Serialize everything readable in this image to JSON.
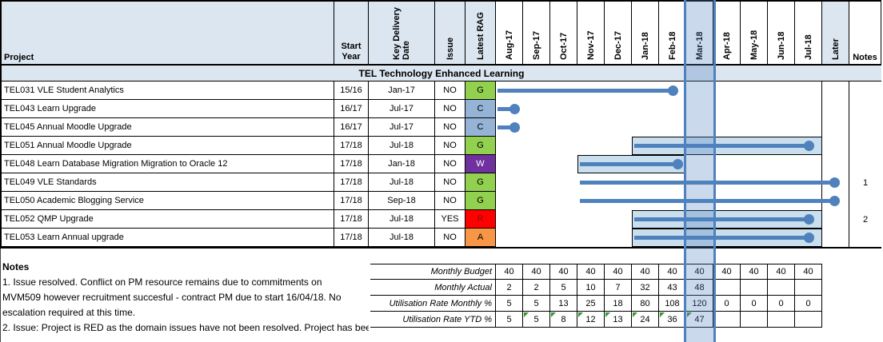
{
  "colors": {
    "header_fill": "#dce6f1",
    "grid_line": "#000000",
    "gantt_line": "#4f81bd",
    "gantt_band_fill": "#c9dfee",
    "highlight_fill": "rgba(79,129,189,0.30)",
    "highlight_border": "#4f81bd",
    "flag_green": "#339933",
    "rag_fill": {
      "G": "#92d050",
      "C": "#95b3d7",
      "W": "#7030a0",
      "R": "#ff0000",
      "A": "#f79646"
    },
    "rag_text": {
      "G": "#000000",
      "C": "#000000",
      "W": "#ffffff",
      "R": "#9c0006",
      "A": "#000000"
    }
  },
  "table": {
    "headers": {
      "project": "Project",
      "start_year": "Start Year",
      "key_delivery": "Key Delivery Date",
      "issue": "Issue",
      "latest_rag": "Latest RAG",
      "later": "Later",
      "notes": "Notes"
    },
    "months": [
      "Aug-17",
      "Sep-17",
      "Oct-17",
      "Nov-17",
      "Dec-17",
      "Jan-18",
      "Feb-18",
      "Mar-18",
      "Apr-18",
      "May-18",
      "Jun-18",
      "Jul-18"
    ],
    "highlight_month": "Mar-18",
    "section_header": "TEL Technology Enhanced Learning",
    "projects": [
      {
        "name": "TEL031 VLE Student Analytics",
        "start_year": "15/16",
        "key_date": "Jan-17",
        "issue": "NO",
        "rag": "G",
        "note": "",
        "line": [
          0.05,
          6.5
        ],
        "band": null
      },
      {
        "name": "TEL043 Learn Upgrade",
        "start_year": "16/17",
        "key_date": "Jul-17",
        "issue": "NO",
        "rag": "C",
        "note": "",
        "line": [
          0.05,
          0.7
        ],
        "band": null
      },
      {
        "name": "TEL045 Annual Moodle Upgrade",
        "start_year": "16/17",
        "key_date": "Jul-17",
        "issue": "NO",
        "rag": "C",
        "note": "",
        "line": [
          0.05,
          0.7
        ],
        "band": null
      },
      {
        "name": "TEL051 Annual Moodle Upgrade",
        "start_year": "17/18",
        "key_date": "Jul-18",
        "issue": "NO",
        "rag": "G",
        "note": "",
        "line": [
          5.1,
          11.5
        ],
        "band": [
          5,
          12
        ]
      },
      {
        "name": "TEL048 Learn Database Migration Migration to Oracle 12",
        "start_year": "17/18",
        "key_date": "Jan-18",
        "issue": "NO",
        "rag": "W",
        "note": "",
        "line": [
          3.1,
          6.7
        ],
        "band": [
          3,
          7
        ]
      },
      {
        "name": "TEL049 VLE Standards",
        "start_year": "17/18",
        "key_date": "Jul-18",
        "issue": "NO",
        "rag": "G",
        "note": "1",
        "line": [
          3.1,
          12.45
        ],
        "band": null
      },
      {
        "name": "TEL050 Academic Blogging Service",
        "start_year": "17/18",
        "key_date": "Sep-18",
        "issue": "NO",
        "rag": "G",
        "note": "",
        "line": [
          3.1,
          12.45
        ],
        "band": null
      },
      {
        "name": "TEL052 QMP Upgrade",
        "start_year": "17/18",
        "key_date": "Jul-18",
        "issue": "YES",
        "rag": "R",
        "note": "2",
        "line": [
          5.1,
          11.5
        ],
        "band": [
          5,
          12
        ]
      },
      {
        "name": "TEL053 Learn Annual upgrade",
        "start_year": "17/18",
        "key_date": "Jul-18",
        "issue": "NO",
        "rag": "A",
        "note": "",
        "line": [
          5.1,
          11.5
        ],
        "band": [
          5,
          12
        ]
      }
    ]
  },
  "notes_block": {
    "title": "Notes",
    "lines": [
      "1. Issue resolved. Conflict on PM resource remains due to commitments on",
      "MVM509 however recruitment succesful - contract PM due to start 16/04/18. No",
      "escalation required at this time.",
      "2. Issue: Project is RED as the domain issues have not been resolved. Project has bee"
    ]
  },
  "utilisation": {
    "rows": [
      {
        "label": "Monthly Budget",
        "values": [
          "40",
          "40",
          "40",
          "40",
          "40",
          "40",
          "40",
          "40",
          "40",
          "40",
          "40",
          "40"
        ],
        "flags": []
      },
      {
        "label": "Monthly Actual",
        "values": [
          "2",
          "2",
          "5",
          "10",
          "7",
          "32",
          "43",
          "48",
          "",
          "",
          "",
          ""
        ],
        "flags": []
      },
      {
        "label": "Utilisation Rate Monthly %",
        "values": [
          "5",
          "5",
          "13",
          "25",
          "18",
          "80",
          "108",
          "120",
          "0",
          "0",
          "0",
          "0"
        ],
        "flags": []
      },
      {
        "label": "Utilisation Rate YTD %",
        "values": [
          "5",
          "5",
          "8",
          "12",
          "13",
          "24",
          "36",
          "47",
          "",
          "",
          "",
          ""
        ],
        "flags": [
          1,
          2,
          3,
          4,
          5,
          6,
          7
        ]
      }
    ]
  }
}
